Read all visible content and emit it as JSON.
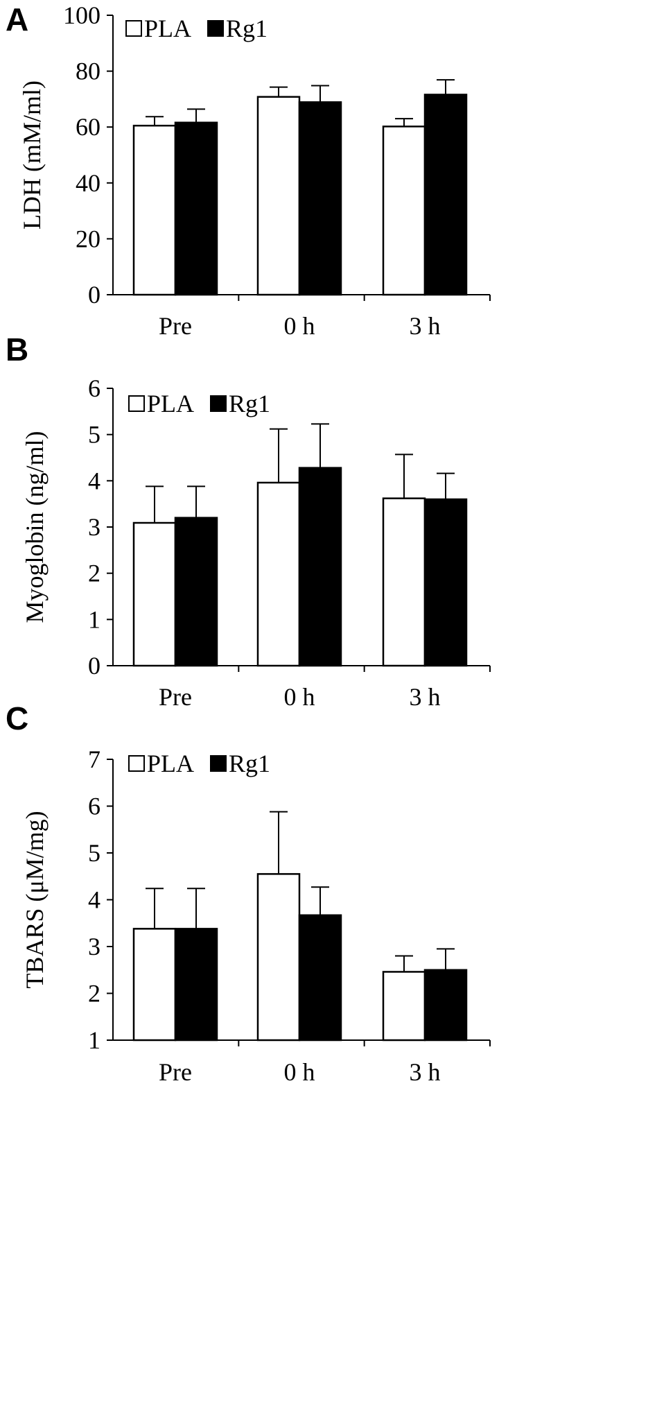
{
  "chart_data": [
    {
      "type": "bar",
      "panel": "A",
      "categories": [
        "Pre",
        "0 h",
        "3 h"
      ],
      "ylabel": "LDH (mM/ml)",
      "ylim": [
        0,
        100
      ],
      "yticks": [
        0,
        20,
        40,
        60,
        80,
        100
      ],
      "legend": "top-left",
      "series": [
        {
          "name": "PLA",
          "values": [
            60.5,
            70.8,
            60.2
          ],
          "errors": [
            3.2,
            3.5,
            2.8
          ]
        },
        {
          "name": "Rg1",
          "values": [
            61.6,
            68.9,
            71.6
          ],
          "errors": [
            4.8,
            5.9,
            5.3
          ]
        }
      ]
    },
    {
      "type": "bar",
      "panel": "B",
      "categories": [
        "Pre",
        "0 h",
        "3 h"
      ],
      "ylabel": "Myoglobin (ng/ml)",
      "ylim": [
        0,
        6
      ],
      "yticks": [
        0,
        1,
        2,
        3,
        4,
        5,
        6
      ],
      "legend": "top-left",
      "series": [
        {
          "name": "PLA",
          "values": [
            3.09,
            3.96,
            3.62
          ],
          "errors": [
            0.79,
            1.16,
            0.95
          ]
        },
        {
          "name": "Rg1",
          "values": [
            3.2,
            4.28,
            3.6
          ],
          "errors": [
            0.68,
            0.95,
            0.56
          ]
        }
      ]
    },
    {
      "type": "bar",
      "panel": "C",
      "categories": [
        "Pre",
        "0 h",
        "3 h"
      ],
      "ylabel": "TBARS (μM/mg)",
      "ylim": [
        1,
        7
      ],
      "yticks": [
        1,
        2,
        3,
        4,
        5,
        6,
        7
      ],
      "legend": "top-left",
      "series": [
        {
          "name": "PLA",
          "values": [
            3.38,
            4.55,
            2.46
          ],
          "errors": [
            0.86,
            1.33,
            0.34
          ]
        },
        {
          "name": "Rg1",
          "values": [
            3.38,
            3.67,
            2.5
          ],
          "errors": [
            0.86,
            0.6,
            0.45
          ]
        }
      ]
    }
  ],
  "colors": {
    "PLA": "#ffffff",
    "Rg1": "#000000",
    "axis": "#000000"
  }
}
